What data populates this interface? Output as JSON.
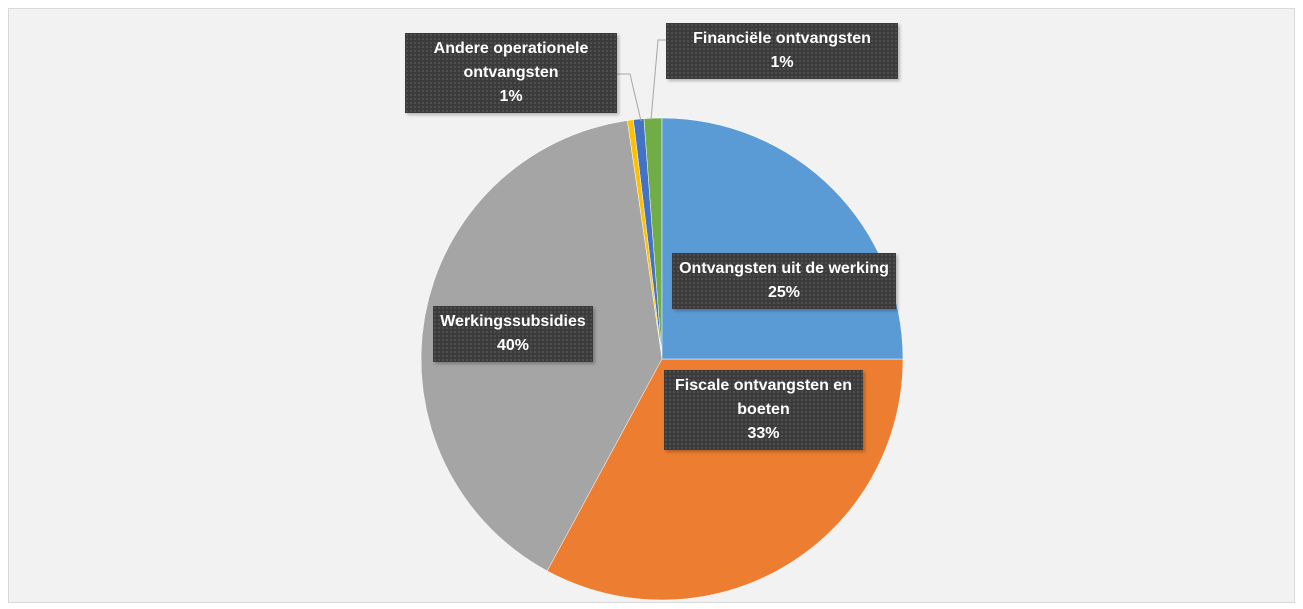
{
  "chart_data": {
    "type": "pie",
    "categories": [
      "Ontvangsten uit de werking",
      "Fiscale ontvangsten en boeten",
      "Werkingssubsidies",
      null,
      "Andere operationele ontvangsten",
      "Financiële ontvangsten"
    ],
    "values": [
      25,
      32.9,
      39.8,
      0.4,
      0.7,
      1.2
    ],
    "value_labels": [
      "25%",
      "33%",
      "40%",
      null,
      "1%",
      "1%"
    ],
    "colors": [
      "#5b9bd5",
      "#ed7d31",
      "#a5a5a5",
      "#ffc000",
      "#4472c4",
      "#70ad47"
    ]
  }
}
